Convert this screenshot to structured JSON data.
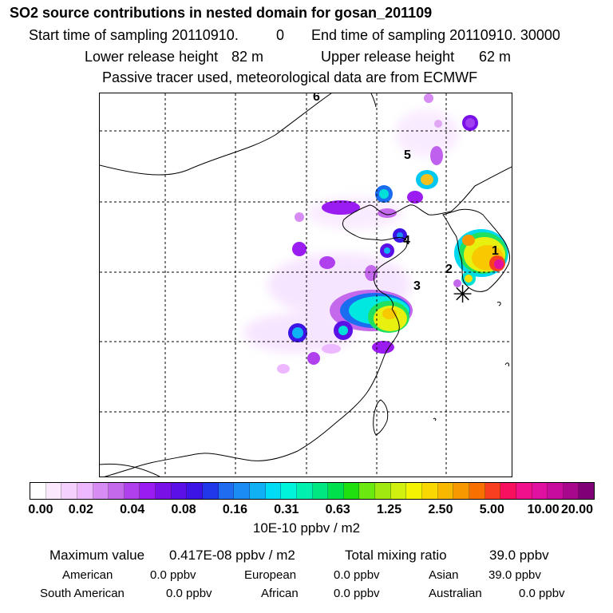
{
  "header": {
    "title": "SO2 source contributions in nested domain for gosan_201109",
    "start_label": "Start time of sampling 20110910.",
    "start_value": "0",
    "end_label": "End time of sampling 20110910. 30000",
    "lower_label": "Lower release height",
    "lower_value": "82 m",
    "upper_label": "Upper release height",
    "upper_value": "62 m",
    "tracer_note": "Passive tracer used, meteorological data are from ECMWF"
  },
  "map": {
    "markers": [
      "1",
      "2",
      "3",
      "4",
      "5",
      "6"
    ],
    "station_symbol": "✳"
  },
  "colorbar": {
    "unit": "10E-10 ppbv / m2",
    "tick_labels": [
      "0.00",
      "0.02",
      "0.04",
      "0.08",
      "0.16",
      "0.31",
      "0.63",
      "1.25",
      "2.50",
      "5.00",
      "10.00",
      "20.00"
    ],
    "colors": [
      "#ffffff",
      "#fbe8ff",
      "#f4d0ff",
      "#edb8ff",
      "#d68cf2",
      "#c468ec",
      "#b040ee",
      "#9a1cf0",
      "#7a10e8",
      "#5a10e6",
      "#3c14e6",
      "#2038ea",
      "#1f6cf0",
      "#1a8cf4",
      "#10b0f4",
      "#00dcf4",
      "#00f4dc",
      "#00f0b0",
      "#00e680",
      "#00e04c",
      "#20e010",
      "#6ae810",
      "#a0e810",
      "#d2f010",
      "#f4f400",
      "#f8d800",
      "#f8b800",
      "#f89800",
      "#f87000",
      "#f84020",
      "#f81060",
      "#f0108c",
      "#e010a0",
      "#c80c9c",
      "#a8088c",
      "#800078"
    ]
  },
  "stats": {
    "max_label": "Maximum value",
    "max_value": "0.417E-08 ppbv / m2",
    "total_label": "Total mixing ratio",
    "total_value": "39.0 ppbv"
  },
  "regions": [
    {
      "name": "American",
      "value": "0.0 ppbv"
    },
    {
      "name": "European",
      "value": "0.0 ppbv"
    },
    {
      "name": "Asian",
      "value": "39.0 ppbv"
    },
    {
      "name": "South American",
      "value": "0.0 ppbv"
    },
    {
      "name": "African",
      "value": "0.0 ppbv"
    },
    {
      "name": "Australian",
      "value": "0.0 ppbv"
    }
  ],
  "chart_data": {
    "type": "heatmap",
    "title": "SO2 source contributions in nested domain for gosan_201109",
    "unit": "10E-10 ppbv / m2",
    "color_scale": [
      0.0,
      0.02,
      0.04,
      0.08,
      0.16,
      0.31,
      0.63,
      1.25,
      2.5,
      5.0,
      10.0,
      20.0
    ],
    "maximum_value": "0.417E-08 ppbv / m2",
    "total_mixing_ratio_ppbv": 39.0,
    "source_regions_labelled": [
      "1",
      "2",
      "3",
      "4",
      "5",
      "6"
    ]
  }
}
